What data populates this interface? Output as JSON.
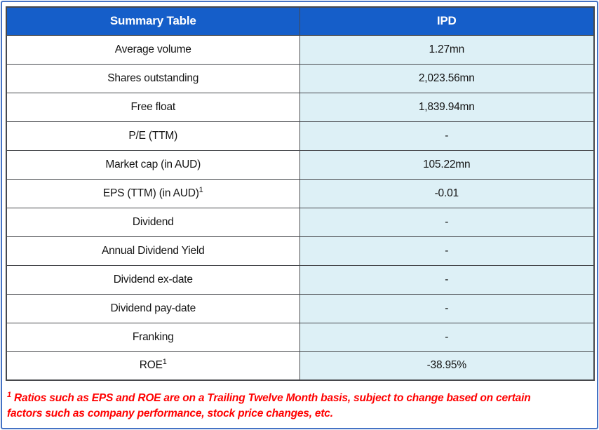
{
  "colors": {
    "header_bg": "#155EC9",
    "header_text": "#FFFFFF",
    "value_bg": "#DDF0F6",
    "label_bg": "#FFFFFF",
    "grid": "#46484C",
    "frame": "#4472C4",
    "footnote": "#FF0000",
    "cell_text": "#141414"
  },
  "table": {
    "header": {
      "col1": "Summary Table",
      "col2": "IPD"
    },
    "rows": [
      {
        "label": "Average volume",
        "value": "1.27mn"
      },
      {
        "label": "Shares outstanding",
        "value": "2,023.56mn"
      },
      {
        "label": "Free float",
        "value": "1,839.94mn"
      },
      {
        "label": "P/E (TTM)",
        "value": "-"
      },
      {
        "label": "Market cap (in AUD)",
        "value": "105.22mn"
      },
      {
        "label": "EPS (TTM) (in AUD)",
        "label_sup": "1",
        "value": "-0.01"
      },
      {
        "label": "Dividend",
        "value": "-"
      },
      {
        "label": "Annual Dividend Yield",
        "value": "-"
      },
      {
        "label": "Dividend ex-date",
        "value": "-"
      },
      {
        "label": "Dividend pay-date",
        "value": "-"
      },
      {
        "label": "Franking",
        "value": "-"
      },
      {
        "label": "ROE",
        "label_sup": "1",
        "value": "-38.95%"
      }
    ]
  },
  "footnote": {
    "sup": "1",
    "text": "Ratios such as EPS and ROE are on a Trailing Twelve Month basis, subject to change based on certain factors such as company performance, stock price changes, etc."
  },
  "chart_data": {
    "type": "table",
    "title": "Summary Table",
    "columns": [
      "Summary Table",
      "IPD"
    ],
    "rows": [
      [
        "Average volume",
        "1.27mn"
      ],
      [
        "Shares outstanding",
        "2,023.56mn"
      ],
      [
        "Free float",
        "1,839.94mn"
      ],
      [
        "P/E (TTM)",
        "-"
      ],
      [
        "Market cap (in AUD)",
        "105.22mn"
      ],
      [
        "EPS (TTM) (in AUD)¹",
        "-0.01"
      ],
      [
        "Dividend",
        "-"
      ],
      [
        "Annual Dividend Yield",
        "-"
      ],
      [
        "Dividend ex-date",
        "-"
      ],
      [
        "Dividend pay-date",
        "-"
      ],
      [
        "Franking",
        "-"
      ],
      [
        "ROE¹",
        "-38.95%"
      ]
    ],
    "footnote": "¹ Ratios such as EPS and ROE are on a Trailing Twelve Month basis, subject to change based on certain factors such as company performance, stock price changes, etc."
  }
}
